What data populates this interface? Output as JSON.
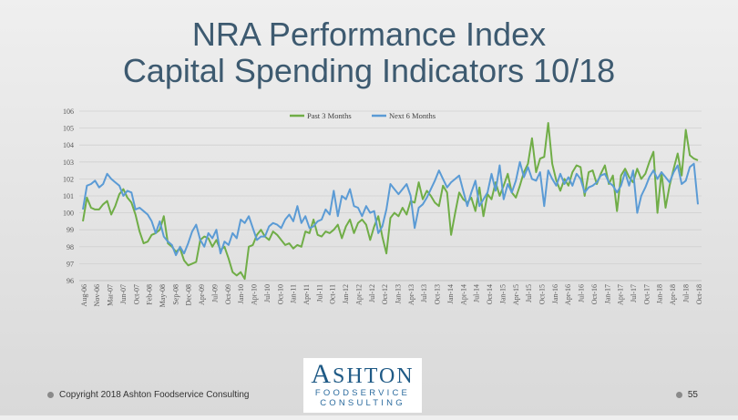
{
  "slide": {
    "title_line1": "NRA Performance Index",
    "title_line2": "Capital Spending Indicators 10/18",
    "copyright": "Copyright 2018 Ashton Foodservice Consulting",
    "page_number": "55"
  },
  "logo": {
    "line1_first": "A",
    "line1_rest": "SHTON",
    "line2": "FOODSERVICE",
    "line3": "CONSULTING"
  },
  "colors": {
    "past": "#70ad47",
    "next": "#5b9bd5",
    "title": "#3d5a70"
  },
  "chart_data": {
    "type": "line",
    "ylim": [
      96,
      106
    ],
    "yticks": [
      96,
      97,
      98,
      99,
      100,
      101,
      102,
      103,
      104,
      105,
      106
    ],
    "legend_position": "top",
    "grid": true,
    "x_tick_labels": [
      "Aug-06",
      "Nov-06",
      "Mar-07",
      "Jun-07",
      "Oct-07",
      "Feb-08",
      "May-08",
      "Sep-08",
      "Dec-08",
      "Apr-09",
      "Jul-09",
      "Oct-09",
      "Jan-10",
      "Apr-10",
      "Jul-10",
      "Oct-10",
      "Jan-11",
      "Apr-11",
      "Jul-11",
      "Oct-11",
      "Jan-12",
      "Apr-12",
      "Jul-12",
      "Oct-12",
      "Jan-13",
      "Apr-13",
      "Jul-13",
      "Oct-13",
      "Jan-14",
      "Apr-14",
      "Jul-14",
      "Oct-14",
      "Jan-15",
      "Apr-15",
      "Jul-15",
      "Oct-15",
      "Jan-16",
      "Apr-16",
      "Jul-16",
      "Oct-16",
      "Jan-17",
      "Apr-17",
      "Jul-17",
      "Oct-17",
      "Jan-18",
      "Apr-18",
      "Jul-18",
      "Oct-18"
    ],
    "series": [
      {
        "name": "Past 3 Months",
        "color": "#70ad47",
        "values": [
          99.5,
          100.9,
          100.3,
          100.2,
          100.2,
          100.5,
          100.7,
          99.9,
          100.4,
          101.1,
          101.4,
          100.9,
          100.6,
          99.9,
          98.9,
          98.2,
          98.3,
          98.7,
          98.8,
          99.0,
          99.8,
          98.2,
          98.0,
          97.7,
          97.9,
          97.2,
          96.9,
          97.0,
          97.1,
          98.4,
          98.6,
          98.5,
          98.0,
          98.4,
          97.8,
          98.0,
          97.3,
          96.5,
          96.3,
          96.5,
          96.1,
          98.0,
          98.1,
          98.7,
          99.0,
          98.6,
          98.4,
          98.9,
          98.7,
          98.4,
          98.1,
          98.2,
          97.9,
          98.1,
          98.0,
          98.9,
          98.8,
          99.6,
          98.7,
          98.6,
          98.9,
          98.8,
          99.0,
          99.3,
          98.5,
          99.2,
          99.6,
          98.8,
          99.4,
          99.6,
          99.3,
          98.4,
          99.2,
          99.8,
          98.6,
          97.6,
          99.7,
          100.0,
          99.8,
          100.3,
          99.9,
          100.7,
          100.6,
          101.8,
          100.8,
          101.3,
          101.0,
          100.6,
          100.4,
          101.6,
          101.2,
          98.7,
          100.0,
          101.2,
          100.8,
          100.6,
          100.9,
          100.1,
          101.5,
          99.8,
          101.1,
          100.8,
          101.8,
          101.0,
          101.6,
          102.3,
          101.2,
          100.9,
          101.6,
          102.4,
          102.9,
          104.4,
          102.4,
          103.2,
          103.3,
          105.3,
          102.9,
          101.9,
          101.3,
          102.0,
          101.6,
          102.4,
          102.8,
          102.7,
          101.0,
          102.4,
          102.5,
          101.7,
          102.3,
          102.8,
          101.7,
          102.2,
          100.1,
          102.2,
          102.6,
          102.1,
          101.8,
          102.6,
          102.0,
          102.3,
          103.0,
          103.6,
          100.0,
          102.4,
          100.3,
          101.6,
          102.6,
          103.5,
          102.2,
          104.9,
          103.4,
          103.2,
          103.1
        ]
      },
      {
        "name": "Next 6 Months",
        "color": "#5b9bd5",
        "values": [
          100.2,
          101.6,
          101.7,
          101.9,
          101.5,
          101.7,
          102.3,
          102.0,
          101.8,
          101.6,
          101.0,
          101.3,
          101.2,
          100.2,
          100.3,
          100.1,
          99.9,
          99.5,
          98.8,
          99.5,
          98.6,
          98.3,
          98.1,
          97.5,
          98.0,
          97.6,
          98.2,
          98.9,
          99.3,
          98.4,
          98.0,
          98.8,
          98.5,
          99.0,
          97.6,
          98.3,
          98.1,
          98.8,
          98.5,
          99.6,
          99.4,
          99.8,
          99.1,
          98.4,
          98.6,
          98.6,
          99.2,
          99.4,
          99.3,
          99.1,
          99.6,
          99.9,
          99.5,
          100.4,
          99.4,
          99.8,
          99.1,
          99.2,
          99.5,
          99.6,
          100.2,
          99.9,
          101.3,
          99.8,
          101.0,
          100.8,
          101.4,
          100.4,
          100.3,
          99.8,
          100.4,
          100.0,
          100.1,
          98.8,
          99.2,
          100.2,
          101.7,
          101.4,
          101.1,
          101.4,
          101.7,
          101.0,
          99.1,
          100.3,
          100.5,
          100.9,
          101.4,
          101.9,
          102.5,
          102.0,
          101.5,
          101.8,
          102.0,
          102.2,
          101.3,
          100.4,
          101.2,
          101.9,
          100.4,
          100.8,
          101.2,
          102.3,
          101.3,
          102.8,
          100.8,
          101.7,
          101.2,
          101.9,
          103.0,
          102.1,
          102.7,
          102.0,
          101.9,
          102.4,
          100.4,
          102.5,
          102.0,
          101.6,
          102.3,
          101.7,
          102.1,
          101.6,
          102.3,
          102.0,
          101.2,
          101.5,
          101.6,
          101.8,
          102.2,
          102.3,
          101.8,
          101.6,
          101.2,
          101.6,
          102.4,
          101.6,
          102.5,
          100.0,
          101.0,
          101.5,
          102.1,
          102.5,
          102.0,
          102.4,
          102.1,
          101.8,
          102.4,
          102.8,
          101.7,
          101.9,
          102.7,
          102.9,
          100.5
        ]
      }
    ]
  }
}
